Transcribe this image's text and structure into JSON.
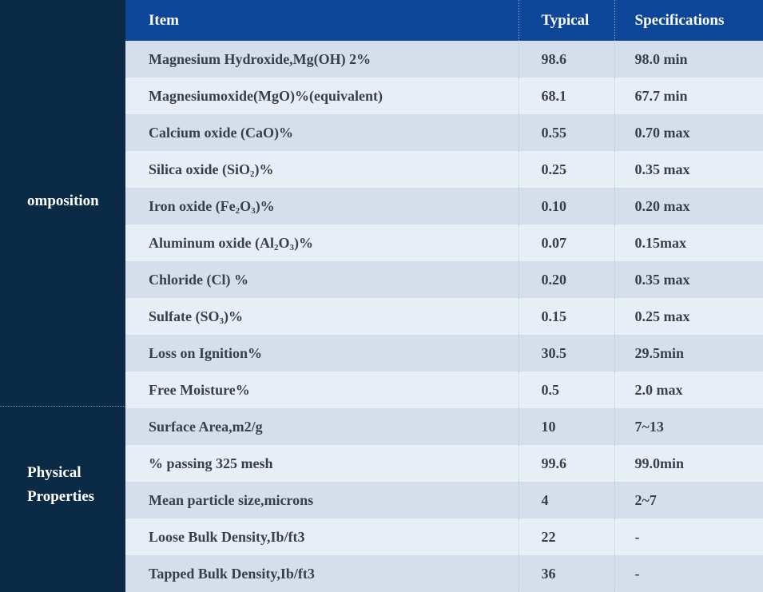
{
  "header": {
    "item": "Item",
    "typical": "Typical",
    "specifications": "Specifications"
  },
  "groups": [
    {
      "label_lines": [
        "omposition"
      ]
    },
    {
      "label_lines": [
        "Physical",
        "Properties"
      ]
    }
  ],
  "rows": [
    {
      "item": "Magnesium Hydroxide,Mg(OH) 2%",
      "typical": "98.6",
      "spec": "98.0 min"
    },
    {
      "item": "Magnesiumoxide(MgO)%(equivalent)",
      "typical": "68.1",
      "spec": "67.7 min"
    },
    {
      "item": "Calcium oxide (CaO)%",
      "typical": "0.55",
      "spec": "0.70 max"
    },
    {
      "item_parts": [
        "Silica oxide (SiO",
        "2",
        ")%"
      ],
      "typical": "0.25",
      "spec": "0.35 max"
    },
    {
      "item_parts": [
        "Iron oxide (Fe",
        "2",
        "O",
        "3",
        ")%"
      ],
      "typical": "0.10",
      "spec": "0.20 max"
    },
    {
      "item_parts": [
        "Aluminum oxide (Al",
        "2",
        "O",
        "3",
        ")%"
      ],
      "typical": "0.07",
      "spec": "0.15max"
    },
    {
      "item": "Chloride (Cl) %",
      "typical": "0.20",
      "spec": "0.35 max"
    },
    {
      "item_parts": [
        "Sulfate (SO",
        "3",
        ")%"
      ],
      "typical": "0.15",
      "spec": "0.25 max"
    },
    {
      "item": "Loss on Ignition%",
      "typical": "30.5",
      "spec": "29.5min"
    },
    {
      "item": "Free Moisture%",
      "typical": "0.5",
      "spec": "2.0 max"
    },
    {
      "item": "Surface Area,m2/g",
      "typical": "10",
      "spec": "7~13"
    },
    {
      "item": "% passing 325 mesh",
      "typical": "99.6",
      "spec": "99.0min"
    },
    {
      "item": "Mean particle size,microns",
      "typical": "4",
      "spec": "2~7"
    },
    {
      "item": "Loose Bulk Density,Ib/ft3",
      "typical": "22",
      "spec": "-"
    },
    {
      "item": "Tapped Bulk Density,Ib/ft3",
      "typical": "36",
      "spec": "-"
    }
  ]
}
